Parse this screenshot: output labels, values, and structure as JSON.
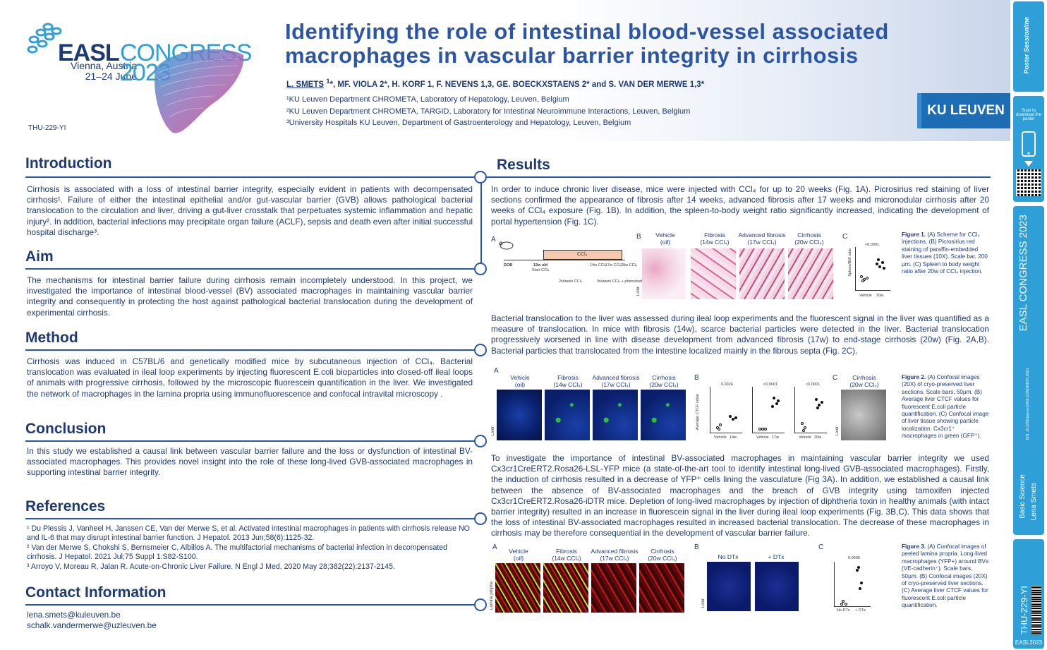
{
  "header": {
    "logo": {
      "easl": "EASL",
      "congress": "CONGRESS",
      "city": "Vienna, Austria",
      "dates": "21–24 June",
      "year": "2023"
    },
    "poster_code": "THU-229-YI",
    "title_line1": "Identifying the role of intestinal blood-vessel associated",
    "title_line2": "macrophages in vascular barrier integrity in cirrhosis",
    "authors_lead": "L. SMETS",
    "authors_lead_sup": "1",
    "authors_rest": "*, MF. VIOLA 2*, H. KORF 1, F. NEVENS 1,3, GE. BOECKXSTAENS 2* and S. VAN DER MERWE 1,3*",
    "affiliations": [
      "¹KU Leuven Department CHROMETA, Laboratory of Hepatology, Leuven, Belgium",
      "²KU Leuven Department CHROMETA, TARGID, Laboratory for Intestinal Neuroimmune Interactions, Leuven, Belgium",
      "³University Hospitals KU Leuven, Department of Gastroenterology and Hepatology, Leuven, Belgium"
    ],
    "institution": "KU LEUVEN"
  },
  "sidebar": {
    "brand": "Poster Sessionline",
    "scan": "Scan to download the poster",
    "congress": "EASL CONGRESS 2023",
    "doi": "DOI: 10.3252/pso.eu.EASLCONGRESS.2023",
    "category": "Basic Science",
    "author": "Lena Smets",
    "code": "THU-229-YI",
    "footer": "EASL2023"
  },
  "sections": {
    "introduction": {
      "title": "Introduction",
      "text": "Cirrhosis is associated with a loss of intestinal barrier integrity, especially evident in patients with decompensated cirrhosis¹. Failure of either the intestinal epithelial and/or gut-vascular barrier (GVB) allows pathological bacterial translocation to the circulation and liver, driving a gut-liver crosstalk that perpetuates systemic inflammation and hepatic injury². In addition, bacterial infections may precipitate organ failure (ACLF), sepsis and death even after initial successful hospital discharge³."
    },
    "aim": {
      "title": "Aim",
      "text": "The mechanisms for intestinal barrier failure during cirrhosis remain incompletely understood. In this project, we investigated the importance of intestinal blood-vessel (BV) associated macrophages in maintaining vascular barrier integrity and consequently in protecting the host against pathological bacterial translocation during the development of experimental cirrhosis."
    },
    "method": {
      "title": "Method",
      "text": "Cirrhosis was induced in C57BL/6 and genetically modified mice by subcutaneous injection of CCl₄. Bacterial translocation was evaluated in ileal loop experiments by injecting fluorescent E.coli bioparticles into closed-off ileal loops of animals with progressive cirrhosis, followed by the microscopic fluorescein quantification in the liver. We investigated the network of macrophages in the lamina propria using immunofluorescence and confocal intravital microscopy ."
    },
    "conclusion": {
      "title": "Conclusion",
      "text": "In this study we established a causal link between vascular barrier failure and the loss or dysfunction of intestinal BV-associated macrophages. This provides novel insight into the role of these long-lived GVB-associated macrophages in supporting intestinal barrier integrity."
    },
    "references": {
      "title": "References",
      "items": [
        "¹ Du Plessis J, Vanheel H, Janssen CE, Van der Merwe S, et al. Activated intestinal macrophages in patients with cirrhosis release NO and IL-6 that may disrupt intestinal barrier function. J Hepatol. 2013 Jun;58(6):1125-32.",
        "² Van der Merwe S, Chokshi S, Bernsmeier C, Albillos A. The multifactorial mechanisms of bacterial infection in decompensated cirrhosis. J Hepatol. 2021 Jul;75 Suppl 1:S82-S100.",
        "³ Arroyo V, Moreau R, Jalan R. Acute-on-Chronic Liver Failure. N Engl J Med. 2020 May 28;382(22):2137-2145."
      ]
    },
    "contact": {
      "title": "Contact Information",
      "emails": [
        "lena.smets@kuleuven.be",
        "schalk.vandermerwe@uzleuven.be"
      ]
    },
    "results": {
      "title": "Results",
      "p1": "In order to induce chronic liver disease, mice were injected with CCl₄ for up to 20 weeks (Fig. 1A). Picrosirius red staining of liver sections confirmed the appearance of fibrosis after 14 weeks, advanced fibrosis after 17 weeks and micronodular cirrhosis after 20 weeks of CCl₄ exposure (Fig. 1B). In addition, the spleen-to-body weight ratio significantly increased, indicating the development of portal hypertension (Fig. 1C).",
      "p2": "Bacterial translocation to the liver was assessed during ileal loop experiments and the fluorescent signal in the liver was quantified as a measure of translocation. In mice with fibrosis (14w), scarce bacterial particles were detected in the liver. Bacterial translocation progressively worsened in line with disease development from advanced fibrosis (17w) to end-stage cirrhosis (20w) (Fig. 2A,B). Bacterial particles that translocated from the intestine localized mainly in the fibrous septa (Fig. 2C).",
      "p3": "To investigate the importance of intestinal BV-associated macrophages in maintaining vascular barrier integrity we used Cx3cr1CreERT2.Rosa26-LSL-YFP mice (a state-of-the-art tool to identify intestinal long-lived GVB-associated macrophages). Firstly, the induction of cirrhosis resulted in a decrease of YFP⁺ cells lining the vasculature (Fig 3A). In addition, we established a causal link between the absence of BV-associated macrophages and the breach of GVB integrity using tamoxifen injected Cx3cr1CreERT2.Rosa26-iDTR mice. Depletion of long-lived macrophages by injection of diphtheria toxin in healthy animals (with intact barrier integrity) resulted in an increase in fluorescein signal in the liver during ileal loop experiments (Fig. 3B,C). This data shows that the loss of intestinal BV-associated macrophages resulted in increased bacterial translocation. The decrease of these macrophages in cirrhosis may be therefore consequential in the development of vascular barrier failure."
    }
  },
  "figures": {
    "fig1": {
      "panels": [
        "A",
        "B",
        "C"
      ],
      "timeline": {
        "dob": "DOB",
        "start": "12w old",
        "start_sub": "Start CCl₄",
        "ccl4": "CCl₄",
        "t14": "14w CCl₄",
        "t17": "17w CCl₄",
        "t20": "20w CCl₄",
        "freq": "2x/week CCl₄",
        "freq2": "3x/week CCl₄ + phenobarbital"
      },
      "labels": [
        "Vehicle\n(oil)",
        "Fibrosis\n(14w CCl₄)",
        "Advanced fibrosis\n(17w CCl₄)",
        "Cirrhosis\n(20w CCl₄)"
      ],
      "side": "Liver",
      "pval": "<0.0001",
      "ylabel": "Spleen/BW ratio",
      "xcats": [
        "Vehicle",
        "20w"
      ],
      "caption_title": "Figure 1.",
      "caption": "(A) Scheme for CCl₄ injections. (B) Picrosirius red staining of paraffin-embedded liver tissues (10X). Scale bar, 200 µm. (C) Spleen to body weight ratio after 20w of CCl₄ injection."
    },
    "fig2": {
      "panels": [
        "A",
        "B",
        "C"
      ],
      "labels": [
        "Vehicle\n(oil)",
        "Fibrosis\n(14w CCl₄)",
        "Advanced fibrosis\n(17w CCl₄)",
        "Cirrhosis\n(20w CCl₄)"
      ],
      "c_label": "Cirrhosis\n(20w CCl₄)",
      "side": "Liver",
      "pvals": [
        "0.0024",
        "<0.0001",
        "<0.0001"
      ],
      "xcats": [
        [
          "Vehicle",
          "14w"
        ],
        [
          "Vehicle",
          "17w"
        ],
        [
          "Vehicle",
          "20w"
        ]
      ],
      "ylabel": "Average CTCF value",
      "caption_title": "Figure 2.",
      "caption": "(A) Confocal images (20X) of cryo-preserved liver sections. Scale bars, 50µm. (B) Average liver CTCF values for fluorescent E.coli particle quantification. (C) Confocal image of liver tissue showing particle localization. Cx3cr1⁺ macrophages in green (GFP⁺)."
    },
    "fig3": {
      "panels": [
        "A",
        "B",
        "C"
      ],
      "labels": [
        "Vehicle\n(oil)",
        "Fibrosis\n(14w CCl₄)",
        "Advanced fibrosis\n(17w CCl₄)",
        "Cirrhosis\n(20w CCl₄)"
      ],
      "b_labels": [
        "No DTx",
        "+ DTx"
      ],
      "side_a": "Lamina propria",
      "side_b": "Liver",
      "pval": "0.0005",
      "xcats": [
        "No DTx",
        "+ DTx"
      ],
      "caption_title": "Figure 3.",
      "caption": "(A) Confocal images of peeled lamina propria. Long-lived macrophages (YFP+) around BVs (VE-cadherin⁺). Scale bars, 50µm. (B) Confocal images (20X) of cryo-preserved liver sections. (C) Average liver CTCF values for fluorescent E.coli particle quantification."
    }
  },
  "colors": {
    "navy": "#1d3a73",
    "title_blue": "#2b55a6",
    "accent": "#2f9fd8",
    "ku_blue": "#1d6db5"
  }
}
